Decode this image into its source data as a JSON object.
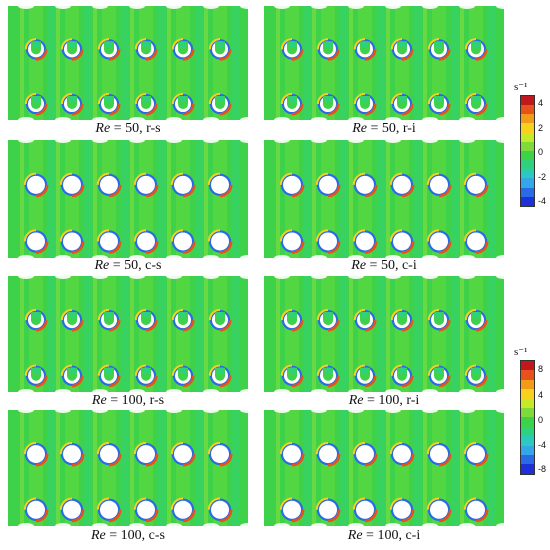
{
  "panels": [
    {
      "re_label": "Re",
      "re_value": " = 50, r-s",
      "shape": "r"
    },
    {
      "re_label": "Re",
      "re_value": " = 50, r-i",
      "shape": "r"
    },
    {
      "re_label": "Re",
      "re_value": " = 50, c-s",
      "shape": "c"
    },
    {
      "re_label": "Re",
      "re_value": " = 50, c-i",
      "shape": "c"
    },
    {
      "re_label": "Re",
      "re_value": " = 100, r-s",
      "shape": "r"
    },
    {
      "re_label": "Re",
      "re_value": " = 100, r-i",
      "shape": "r"
    },
    {
      "re_label": "Re",
      "re_value": " = 100, c-s",
      "shape": "c"
    },
    {
      "re_label": "Re",
      "re_value": " = 100, c-i",
      "shape": "c"
    }
  ],
  "colorbar_top": {
    "unit": "s⁻¹",
    "ticks": [
      "4",
      "2",
      "0",
      "-2",
      "-4"
    ],
    "colors": [
      "#c0181c",
      "#e8501c",
      "#f29a1a",
      "#f7d11c",
      "#c8e82a",
      "#7ddc3a",
      "#3ed24a",
      "#2fd27c",
      "#2bc9c0",
      "#35a6e8",
      "#2a6ae6",
      "#1a32d8"
    ]
  },
  "colorbar_bottom": {
    "unit": "s⁻¹",
    "ticks": [
      "8",
      "4",
      "0",
      "-4",
      "-8"
    ],
    "colors": [
      "#c0181c",
      "#e8501c",
      "#f29a1a",
      "#f7d11c",
      "#c8e82a",
      "#7ddc3a",
      "#3ed24a",
      "#2fd27c",
      "#2bc9c0",
      "#35a6e8",
      "#2a6ae6",
      "#1a32d8"
    ]
  }
}
